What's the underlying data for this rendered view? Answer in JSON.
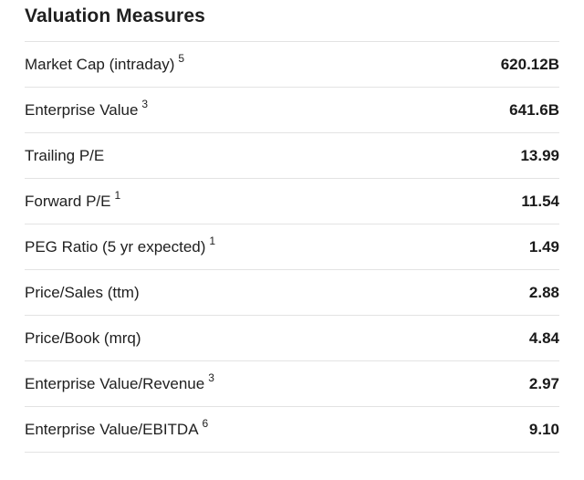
{
  "section": {
    "title": "Valuation Measures"
  },
  "rows": [
    {
      "label": "Market Cap (intraday)",
      "note": "5",
      "value": "620.12B"
    },
    {
      "label": "Enterprise Value",
      "note": "3",
      "value": "641.6B"
    },
    {
      "label": "Trailing P/E",
      "note": "",
      "value": "13.99"
    },
    {
      "label": "Forward P/E",
      "note": "1",
      "value": "11.54"
    },
    {
      "label": "PEG Ratio (5 yr expected)",
      "note": "1",
      "value": "1.49"
    },
    {
      "label": "Price/Sales (ttm)",
      "note": "",
      "value": "2.88"
    },
    {
      "label": "Price/Book (mrq)",
      "note": "",
      "value": "4.84"
    },
    {
      "label": "Enterprise Value/Revenue",
      "note": "3",
      "value": "2.97"
    },
    {
      "label": "Enterprise Value/EBITDA",
      "note": "6",
      "value": "9.10"
    }
  ]
}
